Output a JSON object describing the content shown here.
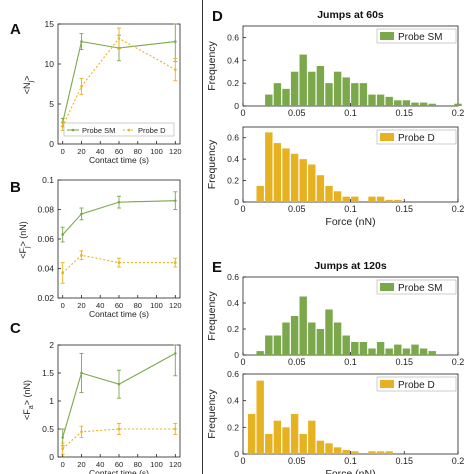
{
  "panel_letters": {
    "A": "A",
    "B": "B",
    "C": "C",
    "D": "D",
    "E": "E"
  },
  "colors": {
    "sm": "#7aa84a",
    "d": "#e6b221",
    "axis": "#222222",
    "grid_text": "#222222"
  },
  "chart_data": [
    {
      "id": "A",
      "type": "line",
      "xlabel": "Contact time (s)",
      "ylabel": "<N_j>",
      "x": [
        0,
        20,
        60,
        120
      ],
      "xlim": [
        -5,
        125
      ],
      "xticks": [
        0,
        20,
        40,
        60,
        80,
        100,
        120
      ],
      "ylim": [
        0,
        15
      ],
      "yticks": [
        0,
        5,
        10,
        15
      ],
      "legend": {
        "position": "bottom",
        "entries": [
          "Probe SM",
          "Probe D"
        ]
      },
      "series": [
        {
          "name": "Probe SM",
          "color": "#7aa84a",
          "dashed": false,
          "values": [
            2.7,
            12.8,
            12.0,
            12.8
          ],
          "errors": [
            0.5,
            1.0,
            1.6,
            2.5
          ]
        },
        {
          "name": "Probe D",
          "color": "#e6b221",
          "dashed": true,
          "values": [
            2.2,
            7.2,
            13.2,
            9.3
          ],
          "errors": [
            0.5,
            1.0,
            1.3,
            1.4
          ]
        }
      ]
    },
    {
      "id": "B",
      "type": "line",
      "xlabel": "Contact time (s)",
      "ylabel": "<F_j> (nN)",
      "x": [
        0,
        20,
        60,
        120
      ],
      "xlim": [
        -5,
        125
      ],
      "xticks": [
        0,
        20,
        40,
        60,
        80,
        100,
        120
      ],
      "ylim": [
        0.02,
        0.1
      ],
      "yticks": [
        0.02,
        0.04,
        0.06,
        0.08,
        0.1
      ],
      "series": [
        {
          "name": "Probe SM",
          "color": "#7aa84a",
          "dashed": false,
          "values": [
            0.063,
            0.077,
            0.085,
            0.086
          ],
          "errors": [
            0.005,
            0.004,
            0.004,
            0.006
          ]
        },
        {
          "name": "Probe D",
          "color": "#e6b221",
          "dashed": true,
          "values": [
            0.037,
            0.049,
            0.044,
            0.044
          ],
          "errors": [
            0.007,
            0.003,
            0.003,
            0.003
          ]
        }
      ]
    },
    {
      "id": "C",
      "type": "line",
      "xlabel": "Contact time (s)",
      "ylabel": "<F_a> (nN)",
      "x": [
        0,
        20,
        60,
        120
      ],
      "xlim": [
        -5,
        125
      ],
      "xticks": [
        0,
        20,
        40,
        60,
        80,
        100,
        120
      ],
      "ylim": [
        0,
        2
      ],
      "yticks": [
        0,
        0.5,
        1,
        1.5,
        2
      ],
      "series": [
        {
          "name": "Probe SM",
          "color": "#7aa84a",
          "dashed": false,
          "values": [
            0.35,
            1.5,
            1.3,
            1.85
          ],
          "errors": [
            0.15,
            0.35,
            0.25,
            0.4
          ]
        },
        {
          "name": "Probe D",
          "color": "#e6b221",
          "dashed": true,
          "values": [
            0.15,
            0.45,
            0.5,
            0.5
          ],
          "errors": [
            0.1,
            0.1,
            0.1,
            0.1
          ]
        }
      ]
    },
    {
      "id": "D-SM",
      "type": "bar",
      "title": "Jumps at 60s",
      "xlabel": "",
      "ylabel": "Frequency",
      "legend": "Probe SM",
      "color": "#7aa84a",
      "xlim": [
        0,
        0.2
      ],
      "xticks": [
        0,
        0.05,
        0.1,
        0.15,
        0.2
      ],
      "ylim": [
        0,
        0.7
      ],
      "yticks": [
        0,
        0.2,
        0.4,
        0.6
      ],
      "bin_width": 0.008,
      "x": [
        0.024,
        0.032,
        0.04,
        0.048,
        0.056,
        0.064,
        0.072,
        0.08,
        0.088,
        0.096,
        0.104,
        0.112,
        0.12,
        0.128,
        0.136,
        0.144,
        0.152,
        0.16,
        0.168,
        0.176,
        0.2
      ],
      "values": [
        0.1,
        0.2,
        0.15,
        0.3,
        0.45,
        0.3,
        0.35,
        0.2,
        0.3,
        0.25,
        0.2,
        0.2,
        0.1,
        0.1,
        0.08,
        0.05,
        0.05,
        0.03,
        0.03,
        0.02,
        0.02
      ]
    },
    {
      "id": "D-D",
      "type": "bar",
      "xlabel": "Force (nN)",
      "ylabel": "Frequency",
      "legend": "Probe D",
      "color": "#e6b221",
      "xlim": [
        0,
        0.2
      ],
      "xticks": [
        0,
        0.05,
        0.1,
        0.15,
        0.2
      ],
      "ylim": [
        0,
        0.7
      ],
      "yticks": [
        0,
        0.2,
        0.4,
        0.6
      ],
      "bin_width": 0.008,
      "x": [
        0.016,
        0.024,
        0.032,
        0.04,
        0.048,
        0.056,
        0.064,
        0.072,
        0.08,
        0.088,
        0.096,
        0.104,
        0.12,
        0.128,
        0.136,
        0.144
      ],
      "values": [
        0.15,
        0.65,
        0.55,
        0.5,
        0.45,
        0.4,
        0.35,
        0.25,
        0.15,
        0.1,
        0.05,
        0.05,
        0.05,
        0.05,
        0.02,
        0.02
      ]
    },
    {
      "id": "E-SM",
      "type": "bar",
      "title": "Jumps at 120s",
      "xlabel": "",
      "ylabel": "Frequency",
      "legend": "Probe SM",
      "color": "#7aa84a",
      "xlim": [
        0,
        0.2
      ],
      "xticks": [
        0,
        0.05,
        0.1,
        0.15,
        0.2
      ],
      "ylim": [
        0,
        0.6
      ],
      "yticks": [
        0,
        0.2,
        0.4,
        0.6
      ],
      "bin_width": 0.008,
      "x": [
        0.016,
        0.024,
        0.032,
        0.04,
        0.048,
        0.056,
        0.064,
        0.072,
        0.08,
        0.088,
        0.096,
        0.104,
        0.112,
        0.12,
        0.128,
        0.136,
        0.144,
        0.152,
        0.16,
        0.168,
        0.176
      ],
      "values": [
        0.03,
        0.15,
        0.15,
        0.25,
        0.3,
        0.45,
        0.25,
        0.2,
        0.35,
        0.25,
        0.15,
        0.1,
        0.1,
        0.05,
        0.1,
        0.05,
        0.08,
        0.05,
        0.08,
        0.05,
        0.03
      ]
    },
    {
      "id": "E-D",
      "type": "bar",
      "xlabel": "Force (nN)",
      "ylabel": "Frequency",
      "legend": "Probe D",
      "color": "#e6b221",
      "xlim": [
        0,
        0.2
      ],
      "xticks": [
        0,
        0.05,
        0.1,
        0.15,
        0.2
      ],
      "ylim": [
        0,
        0.6
      ],
      "yticks": [
        0,
        0.2,
        0.4,
        0.6
      ],
      "bin_width": 0.008,
      "x": [
        0.008,
        0.016,
        0.024,
        0.032,
        0.04,
        0.048,
        0.056,
        0.064,
        0.072,
        0.08,
        0.088,
        0.096,
        0.104,
        0.12,
        0.128,
        0.136
      ],
      "values": [
        0.3,
        0.55,
        0.15,
        0.25,
        0.2,
        0.3,
        0.15,
        0.25,
        0.1,
        0.08,
        0.05,
        0.03,
        0.02,
        0.02,
        0.02,
        0.02
      ]
    }
  ]
}
